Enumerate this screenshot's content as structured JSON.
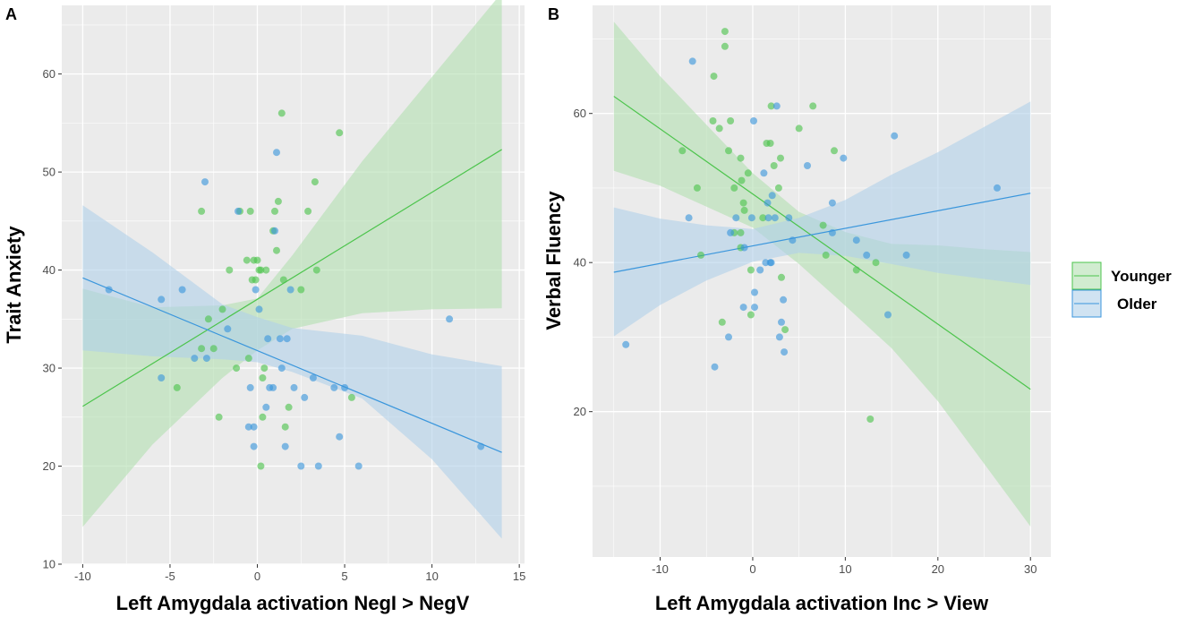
{
  "colors": {
    "younger": "#4cc44c",
    "older": "#3a96dc",
    "younger_band": "#b2dfb0",
    "older_band": "#b0d0ea",
    "panel_bg": "#ebebeb",
    "grid": "#ffffff"
  },
  "legend": {
    "groups": [
      {
        "key": "younger",
        "label": "Younger"
      },
      {
        "key": "older",
        "label": "Older"
      }
    ]
  },
  "chart_data": [
    {
      "panel": "A",
      "type": "scatter",
      "xlabel": "Left Amygdala activation NegI > NegV",
      "ylabel": "Trait Anxiety",
      "xlim": [
        -11.2,
        15.3
      ],
      "ylim": [
        10,
        67
      ],
      "xticks": [
        -10,
        -5,
        0,
        5,
        10,
        15
      ],
      "yticks": [
        10,
        20,
        30,
        40,
        50,
        60
      ],
      "series": [
        {
          "name": "Younger",
          "key": "younger",
          "points": [
            [
              -3.2,
              46
            ],
            [
              -3.2,
              32
            ],
            [
              -2.8,
              35
            ],
            [
              -2.5,
              32
            ],
            [
              -2.2,
              25
            ],
            [
              -2,
              36
            ],
            [
              -1.6,
              40
            ],
            [
              -1.2,
              30
            ],
            [
              -1,
              46
            ],
            [
              -0.6,
              41
            ],
            [
              -0.5,
              31
            ],
            [
              -0.4,
              46
            ],
            [
              -0.3,
              39
            ],
            [
              -0.2,
              41
            ],
            [
              -0.1,
              39
            ],
            [
              0,
              41
            ],
            [
              0.1,
              40
            ],
            [
              0.2,
              20
            ],
            [
              0.2,
              40
            ],
            [
              0.3,
              25
            ],
            [
              0.3,
              29
            ],
            [
              0.4,
              30
            ],
            [
              0.5,
              40
            ],
            [
              0.9,
              44
            ],
            [
              1,
              46
            ],
            [
              1.1,
              42
            ],
            [
              1.2,
              47
            ],
            [
              1.4,
              56
            ],
            [
              1.5,
              39
            ],
            [
              1.6,
              24
            ],
            [
              1.8,
              26
            ],
            [
              2.5,
              38
            ],
            [
              2.9,
              46
            ],
            [
              3.3,
              49
            ],
            [
              3.4,
              40
            ],
            [
              4.7,
              54
            ],
            [
              5.4,
              27
            ],
            [
              -4.6,
              28
            ]
          ],
          "fit": {
            "x": [
              -10,
              14
            ],
            "y": [
              26.1,
              52.3
            ]
          },
          "band": {
            "x": [
              -10,
              -6,
              -2,
              0,
              2,
              6,
              10,
              14
            ],
            "lower": [
              13.8,
              22.2,
              29.0,
              31.8,
              34.0,
              35.6,
              36.0,
              36.1
            ],
            "upper": [
              38.1,
              36.2,
              36.4,
              37.1,
              41.5,
              51.1,
              59.7,
              68.3
            ]
          }
        },
        {
          "name": "Older",
          "key": "older",
          "points": [
            [
              -8.5,
              38
            ],
            [
              -5.5,
              29
            ],
            [
              -5.5,
              37
            ],
            [
              -4.3,
              38
            ],
            [
              -3.6,
              31
            ],
            [
              -3,
              49
            ],
            [
              -2.9,
              31
            ],
            [
              -1.7,
              34
            ],
            [
              -1.1,
              46
            ],
            [
              -0.5,
              24
            ],
            [
              -0.4,
              28
            ],
            [
              -0.2,
              22
            ],
            [
              -0.2,
              24
            ],
            [
              -0.1,
              38
            ],
            [
              0.1,
              36
            ],
            [
              0.5,
              26
            ],
            [
              0.6,
              33
            ],
            [
              0.7,
              28
            ],
            [
              0.9,
              28
            ],
            [
              1,
              44
            ],
            [
              1.1,
              52
            ],
            [
              1.3,
              33
            ],
            [
              1.4,
              30
            ],
            [
              1.6,
              22
            ],
            [
              1.7,
              33
            ],
            [
              1.9,
              38
            ],
            [
              2.1,
              28
            ],
            [
              2.5,
              20
            ],
            [
              2.7,
              27
            ],
            [
              3.2,
              29
            ],
            [
              3.5,
              20
            ],
            [
              4.4,
              28
            ],
            [
              4.7,
              23
            ],
            [
              5,
              28
            ],
            [
              5.8,
              20
            ],
            [
              11,
              35
            ],
            [
              12.8,
              22
            ]
          ],
          "fit": {
            "x": [
              -10,
              14
            ],
            "y": [
              39.2,
              21.4
            ]
          },
          "band": {
            "x": [
              -10,
              -6,
              -2,
              0,
              2,
              6,
              10,
              14
            ],
            "lower": [
              31.8,
              31.2,
              30.9,
              30.6,
              29.6,
              26.9,
              20.7,
              12.6
            ],
            "upper": [
              46.6,
              41.8,
              36.5,
              35.2,
              34.1,
              33.3,
              31.4,
              30.2
            ]
          }
        }
      ]
    },
    {
      "panel": "B",
      "type": "scatter",
      "xlabel": "Left Amygdala activation Inc > View",
      "ylabel": "Verbal Fluency",
      "xlim": [
        -17.3,
        32.2
      ],
      "ylim": [
        0.5,
        74.5
      ],
      "xticks": [
        -10,
        0,
        10,
        20,
        30
      ],
      "yticks": [
        20,
        40,
        60
      ],
      "series": [
        {
          "name": "Younger",
          "key": "younger",
          "points": [
            [
              -3,
              71
            ],
            [
              -3,
              69
            ],
            [
              -4.2,
              65
            ],
            [
              -7.6,
              55
            ],
            [
              -6,
              50
            ],
            [
              -4.3,
              59
            ],
            [
              -3.6,
              58
            ],
            [
              -2.4,
              59
            ],
            [
              -2.6,
              55
            ],
            [
              -2,
              50
            ],
            [
              -1.3,
              54
            ],
            [
              -1.2,
              51
            ],
            [
              -0.5,
              52
            ],
            [
              -0.9,
              47
            ],
            [
              -1,
              48
            ],
            [
              -2,
              44
            ],
            [
              -1.3,
              44
            ],
            [
              -0.2,
              39
            ],
            [
              -0.2,
              33
            ],
            [
              1.1,
              46
            ],
            [
              1.5,
              56
            ],
            [
              1.9,
              56
            ],
            [
              2,
              61
            ],
            [
              2.3,
              53
            ],
            [
              2.8,
              50
            ],
            [
              3,
              54
            ],
            [
              3.1,
              38
            ],
            [
              3.5,
              31
            ],
            [
              5,
              58
            ],
            [
              6.5,
              61
            ],
            [
              7.6,
              45
            ],
            [
              7.9,
              41
            ],
            [
              8.8,
              55
            ],
            [
              11.2,
              39
            ],
            [
              12.7,
              19
            ],
            [
              13.3,
              40
            ],
            [
              -3.3,
              32
            ],
            [
              -5.6,
              41
            ],
            [
              -1.3,
              42
            ]
          ],
          "fit": {
            "x": [
              -15,
              30
            ],
            "y": [
              62.3,
              23.0
            ]
          },
          "band": {
            "x": [
              -15,
              -10,
              -5,
              0,
              5,
              10,
              15,
              20,
              25,
              30
            ],
            "lower": [
              52.3,
              50.3,
              47.5,
              44.7,
              39.8,
              34.2,
              28.5,
              21.4,
              13.0,
              4.6
            ],
            "upper": [
              72.3,
              65.0,
              58.5,
              52.0,
              46.8,
              44.1,
              42.5,
              42.3,
              41.8,
              41.4
            ]
          }
        },
        {
          "name": "Older",
          "key": "older",
          "points": [
            [
              -6.5,
              67
            ],
            [
              -6.9,
              46
            ],
            [
              -13.7,
              29
            ],
            [
              -4.1,
              26
            ],
            [
              -2.6,
              30
            ],
            [
              -2.4,
              44
            ],
            [
              -1.8,
              46
            ],
            [
              -1,
              34
            ],
            [
              -0.9,
              42
            ],
            [
              -0.1,
              46
            ],
            [
              0.1,
              59
            ],
            [
              0.2,
              34
            ],
            [
              0.2,
              36
            ],
            [
              0.8,
              39
            ],
            [
              1.2,
              52
            ],
            [
              1.4,
              40
            ],
            [
              1.6,
              48
            ],
            [
              1.7,
              46
            ],
            [
              1.9,
              40
            ],
            [
              2,
              40
            ],
            [
              2.1,
              49
            ],
            [
              2.4,
              46
            ],
            [
              2.6,
              61
            ],
            [
              2.9,
              30
            ],
            [
              3.1,
              32
            ],
            [
              3.3,
              35
            ],
            [
              3.4,
              28
            ],
            [
              3.9,
              46
            ],
            [
              4.3,
              43
            ],
            [
              5.9,
              53
            ],
            [
              8.6,
              44
            ],
            [
              8.6,
              48
            ],
            [
              9.8,
              54
            ],
            [
              11.2,
              43
            ],
            [
              12.3,
              41
            ],
            [
              14.6,
              33
            ],
            [
              15.3,
              57
            ],
            [
              16.6,
              41
            ],
            [
              26.4,
              50
            ]
          ],
          "fit": {
            "x": [
              -15,
              30
            ],
            "y": [
              38.7,
              49.3
            ]
          },
          "band": {
            "x": [
              -15,
              -10,
              -5,
              0,
              5,
              10,
              15,
              20,
              25,
              30
            ],
            "lower": [
              30.1,
              34.3,
              37.6,
              40.1,
              41.3,
              40.9,
              39.8,
              38.6,
              37.8,
              37.0
            ],
            "upper": [
              47.4,
              45.9,
              45.0,
              44.5,
              46.0,
              48.4,
              51.8,
              54.8,
              58.2,
              61.6
            ]
          }
        }
      ]
    }
  ]
}
